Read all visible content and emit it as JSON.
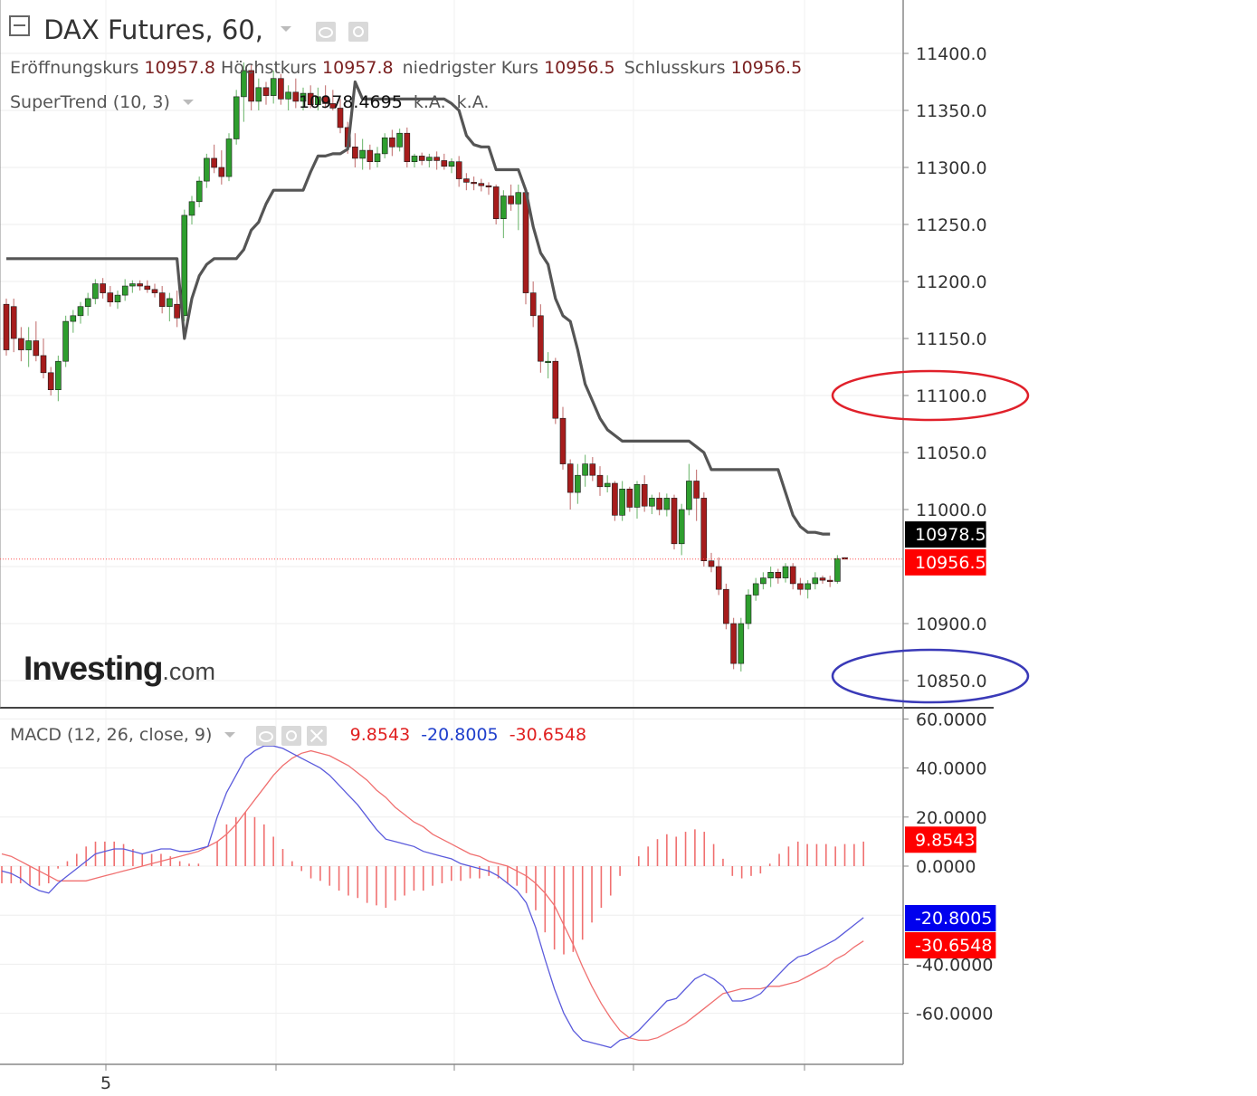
{
  "header": {
    "collapse_icon": "minus-box-icon",
    "title": "DAX Futures, 60,",
    "dropdown_icon": "chevron-down-icon",
    "eye_icon": "eye-icon",
    "settings_icon": "gear-icon"
  },
  "ohlc": {
    "open_label": "Eröffnungskurs",
    "open": "10957.8",
    "high_label": "Höchstkurs",
    "high": "10957.8",
    "low_label": "niedrigster Kurs",
    "low": "10956.5",
    "close_label": "Schlusskurs",
    "close": "10956.5"
  },
  "supertrend": {
    "label": "SuperTrend (10, 3)",
    "value": "10978.4695",
    "na1": "k.A.",
    "na2": "k.A."
  },
  "macd_legend": {
    "label": "MACD (12, 26, close, 9)",
    "hist": "9.8543",
    "macd": "-20.8005",
    "signal": "-30.6548",
    "close_icon": "close-icon"
  },
  "logo": {
    "main": "Investing",
    "suffix": ".com"
  },
  "colors": {
    "up": "#2e9e2e",
    "down": "#a61c1c",
    "supertrend": "#555555",
    "macd_line": "#5b5bdc",
    "signal_line": "#f07070",
    "histogram": "#f07070",
    "last_price": "#ff0000",
    "annot_red": "#e0202a",
    "annot_blue": "#3a3ab8"
  },
  "chart_data": [
    {
      "type": "candlestick",
      "title": "DAX Futures, 60,",
      "ylim": [
        10835,
        11445
      ],
      "y_ticks": [
        "11400.0",
        "11350.0",
        "11300.0",
        "11250.0",
        "11200.0",
        "11150.0",
        "11100.0",
        "11050.0",
        "11000.0",
        "10900.0",
        "10850.0"
      ],
      "x_tick_labels": [
        "5"
      ],
      "candles": [
        [
          11180,
          11185,
          11135,
          11140
        ],
        [
          11178,
          11185,
          11138,
          11150
        ],
        [
          11150,
          11160,
          11130,
          11140
        ],
        [
          11140,
          11160,
          11125,
          11148
        ],
        [
          11148,
          11165,
          11130,
          11135
        ],
        [
          11135,
          11150,
          11115,
          11120
        ],
        [
          11120,
          11125,
          11100,
          11105
        ],
        [
          11105,
          11135,
          11095,
          11130
        ],
        [
          11130,
          11170,
          11125,
          11165
        ],
        [
          11165,
          11175,
          11155,
          11170
        ],
        [
          11170,
          11182,
          11163,
          11178
        ],
        [
          11178,
          11190,
          11170,
          11185
        ],
        [
          11185,
          11202,
          11180,
          11198
        ],
        [
          11198,
          11203,
          11185,
          11190
        ],
        [
          11190,
          11196,
          11178,
          11182
        ],
        [
          11182,
          11192,
          11176,
          11188
        ],
        [
          11188,
          11202,
          11183,
          11196
        ],
        [
          11196,
          11201,
          11190,
          11198
        ],
        [
          11198,
          11201,
          11192,
          11196
        ],
        [
          11196,
          11201,
          11190,
          11193
        ],
        [
          11193,
          11198,
          11186,
          11190
        ],
        [
          11190,
          11196,
          11172,
          11178
        ],
        [
          11178,
          11190,
          11165,
          11185
        ],
        [
          11180,
          11192,
          11160,
          11168
        ],
        [
          11170,
          11263,
          11165,
          11258
        ],
        [
          11258,
          11275,
          11250,
          11270
        ],
        [
          11270,
          11292,
          11265,
          11288
        ],
        [
          11288,
          11312,
          11282,
          11308
        ],
        [
          11308,
          11320,
          11295,
          11300
        ],
        [
          11300,
          11315,
          11285,
          11292
        ],
        [
          11292,
          11330,
          11288,
          11325
        ],
        [
          11325,
          11368,
          11320,
          11362
        ],
        [
          11362,
          11392,
          11340,
          11385
        ],
        [
          11385,
          11390,
          11350,
          11358
        ],
        [
          11358,
          11378,
          11350,
          11370
        ],
        [
          11370,
          11375,
          11355,
          11363
        ],
        [
          11363,
          11385,
          11356,
          11378
        ],
        [
          11378,
          11382,
          11355,
          11360
        ],
        [
          11360,
          11372,
          11350,
          11366
        ],
        [
          11366,
          11378,
          11352,
          11358
        ],
        [
          11358,
          11370,
          11350,
          11365
        ],
        [
          11365,
          11372,
          11352,
          11355
        ],
        [
          11355,
          11370,
          11350,
          11362
        ],
        [
          11362,
          11372,
          11352,
          11356
        ],
        [
          11356,
          11368,
          11350,
          11352
        ],
        [
          11352,
          11360,
          11330,
          11335
        ],
        [
          11335,
          11340,
          11312,
          11318
        ],
        [
          11318,
          11330,
          11300,
          11308
        ],
        [
          11308,
          11325,
          11298,
          11315
        ],
        [
          11315,
          11320,
          11298,
          11305
        ],
        [
          11305,
          11318,
          11300,
          11312
        ],
        [
          11312,
          11330,
          11308,
          11326
        ],
        [
          11326,
          11333,
          11310,
          11318
        ],
        [
          11318,
          11334,
          11314,
          11330
        ],
        [
          11330,
          11335,
          11300,
          11305
        ],
        [
          11305,
          11312,
          11300,
          11310
        ],
        [
          11310,
          11313,
          11302,
          11306
        ],
        [
          11306,
          11312,
          11300,
          11309
        ],
        [
          11309,
          11314,
          11298,
          11306
        ],
        [
          11306,
          11312,
          11298,
          11301
        ],
        [
          11301,
          11308,
          11295,
          11305
        ],
        [
          11305,
          11310,
          11283,
          11290
        ],
        [
          11290,
          11295,
          11280,
          11287
        ],
        [
          11287,
          11292,
          11280,
          11286
        ],
        [
          11286,
          11290,
          11279,
          11284
        ],
        [
          11284,
          11287,
          11276,
          11283
        ],
        [
          11283,
          11285,
          11250,
          11255
        ],
        [
          11255,
          11280,
          11238,
          11275
        ],
        [
          11275,
          11285,
          11262,
          11268
        ],
        [
          11268,
          11285,
          11245,
          11278
        ],
        [
          11278,
          11282,
          11180,
          11190
        ],
        [
          11190,
          11200,
          11160,
          11170
        ],
        [
          11170,
          11180,
          11120,
          11130
        ],
        [
          11130,
          11138,
          11115,
          11130
        ],
        [
          11130,
          11133,
          11075,
          11080
        ],
        [
          11080,
          11090,
          11035,
          11040
        ],
        [
          11040,
          11044,
          11000,
          11015
        ],
        [
          11015,
          11040,
          11005,
          11030
        ],
        [
          11030,
          11048,
          11020,
          11040
        ],
        [
          11040,
          11046,
          11025,
          11030
        ],
        [
          11030,
          11038,
          11012,
          11020
        ],
        [
          11020,
          11030,
          11015,
          11023
        ],
        [
          11023,
          11025,
          10990,
          10995
        ],
        [
          10995,
          11025,
          10990,
          11018
        ],
        [
          11018,
          11020,
          10998,
          11002
        ],
        [
          11002,
          11025,
          10992,
          11022
        ],
        [
          11022,
          11030,
          10998,
          11003
        ],
        [
          11003,
          11013,
          10996,
          11010
        ],
        [
          11010,
          11015,
          10995,
          11000
        ],
        [
          11000,
          11014,
          10994,
          11010
        ],
        [
          11010,
          11013,
          10965,
          10970
        ],
        [
          10970,
          11005,
          10960,
          11000
        ],
        [
          11000,
          11040,
          10995,
          11025
        ],
        [
          11025,
          11035,
          10990,
          11010
        ],
        [
          11010,
          11015,
          10950,
          10955
        ],
        [
          10955,
          10962,
          10945,
          10950
        ],
        [
          10950,
          10958,
          10925,
          10930
        ],
        [
          10930,
          10935,
          10895,
          10900
        ],
        [
          10900,
          10905,
          10860,
          10865
        ],
        [
          10865,
          10905,
          10858,
          10900
        ],
        [
          10900,
          10930,
          10895,
          10925
        ],
        [
          10925,
          10940,
          10920,
          10935
        ],
        [
          10935,
          10945,
          10930,
          10940
        ],
        [
          10940,
          10950,
          10932,
          10945
        ],
        [
          10945,
          10948,
          10935,
          10940
        ],
        [
          10940,
          10953,
          10936,
          10950
        ],
        [
          10950,
          10953,
          10930,
          10935
        ],
        [
          10935,
          10940,
          10925,
          10930
        ],
        [
          10930,
          10938,
          10922,
          10935
        ],
        [
          10935,
          10945,
          10930,
          10940
        ],
        [
          10940,
          10942,
          10935,
          10938
        ],
        [
          10938,
          10942,
          10932,
          10937
        ],
        [
          10937,
          10960,
          10935,
          10957
        ],
        [
          10957.8,
          10957.8,
          10956.5,
          10956.5
        ]
      ],
      "supertrend": [
        11220,
        11220,
        11220,
        11220,
        11220,
        11220,
        11220,
        11220,
        11220,
        11220,
        11220,
        11220,
        11220,
        11220,
        11220,
        11220,
        11220,
        11220,
        11220,
        11220,
        11220,
        11220,
        11220,
        11220,
        11150,
        11185,
        11205,
        11215,
        11220,
        11220,
        11220,
        11220,
        11228,
        11245,
        11252,
        11268,
        11280,
        11280,
        11280,
        11280,
        11280,
        11296,
        11310,
        11310,
        11312,
        11312,
        11316,
        11375,
        11360,
        11360,
        11360,
        11360,
        11360,
        11360,
        11360,
        11360,
        11360,
        11360,
        11360,
        11360,
        11356,
        11350,
        11328,
        11320,
        11318,
        11318,
        11298,
        11298,
        11298,
        11298,
        11280,
        11248,
        11225,
        11215,
        11185,
        11170,
        11165,
        11140,
        11110,
        11095,
        11080,
        11070,
        11065,
        11060,
        11060,
        11060,
        11060,
        11060,
        11060,
        11060,
        11060,
        11060,
        11060,
        11055,
        11050,
        11035,
        11035,
        11035,
        11035,
        11035,
        11035,
        11035,
        11035,
        11035,
        11035,
        11015,
        10995,
        10985,
        10980,
        10980,
        10978.5,
        10978.5
      ],
      "last_values": {
        "supertrend": "10978.5",
        "price": "10956.5"
      },
      "annotations": [
        "red ellipse around 11100.0",
        "blue ellipse around 10850.0"
      ]
    },
    {
      "type": "line",
      "title": "MACD (12, 26, close, 9)",
      "ylim": [
        -74,
        64
      ],
      "y_ticks": [
        "60.0000",
        "40.0000",
        "20.0000",
        "0.0000",
        "-40.0000",
        "-60.0000"
      ],
      "series": [
        {
          "name": "MACD",
          "values": [
            -2,
            -3,
            -5,
            -8,
            -10,
            -11,
            -7,
            -4,
            -1,
            2,
            5,
            6,
            7,
            7,
            6,
            5,
            6,
            7,
            7,
            6,
            6,
            7,
            8,
            20,
            30,
            37,
            44,
            47,
            49,
            49,
            48,
            46,
            44,
            42,
            40,
            37,
            33,
            29,
            25,
            20,
            15,
            11,
            10,
            9,
            8,
            6,
            5,
            4,
            3,
            1,
            0,
            -1,
            -2,
            -4,
            -7,
            -10,
            -15,
            -25,
            -38,
            -50,
            -60,
            -67,
            -71,
            -72,
            -73,
            -74,
            -71,
            -70,
            -67,
            -63,
            -59,
            -55,
            -54,
            -50,
            -46,
            -44,
            -46,
            -49,
            -55,
            -55,
            -54,
            -52,
            -48,
            -44,
            -40,
            -37,
            -36,
            -34,
            -32,
            -30,
            -27,
            -24,
            -21
          ]
        },
        {
          "name": "Signal",
          "values": [
            5,
            4,
            2,
            0,
            -2,
            -4,
            -6,
            -6,
            -6,
            -6,
            -5,
            -4,
            -3,
            -2,
            -1,
            0,
            1,
            2,
            3,
            4,
            5,
            6,
            8,
            10,
            13,
            17,
            22,
            27,
            32,
            37,
            41,
            44,
            46,
            47,
            46,
            45,
            43,
            41,
            38,
            35,
            31,
            28,
            24,
            21,
            18,
            16,
            13,
            11,
            9,
            7,
            5,
            4,
            2,
            1,
            0,
            -2,
            -4,
            -7,
            -11,
            -16,
            -24,
            -32,
            -41,
            -49,
            -56,
            -62,
            -67,
            -70,
            -71,
            -71,
            -70,
            -68,
            -66,
            -64,
            -61,
            -58,
            -55,
            -52,
            -51,
            -50,
            -50,
            -50,
            -49,
            -49,
            -48,
            -47,
            -45,
            -43,
            -41,
            -38,
            -36,
            -33,
            -30.5
          ]
        },
        {
          "name": "Histogram",
          "values": [
            -7,
            -7,
            -7,
            -8,
            -8,
            -7,
            -1,
            2,
            5,
            8,
            10,
            10,
            10,
            9,
            7,
            5,
            5,
            5,
            4,
            2,
            1,
            1,
            0,
            10,
            17,
            20,
            22,
            20,
            17,
            12,
            7,
            2,
            -2,
            -5,
            -6,
            -8,
            -10,
            -12,
            -13,
            -15,
            -16,
            -17,
            -14,
            -12,
            -10,
            -10,
            -8,
            -7,
            -6,
            -6,
            -5,
            -5,
            -4,
            -5,
            -7,
            -8,
            -11,
            -18,
            -27,
            -34,
            -36,
            -35,
            -30,
            -23,
            -17,
            -12,
            -4,
            0,
            4,
            8,
            11,
            13,
            12,
            14,
            15,
            14,
            9,
            3,
            -4,
            -5,
            -4,
            -3,
            1,
            5,
            8,
            10,
            9,
            9,
            9,
            8,
            9,
            9,
            10
          ]
        }
      ],
      "last_values": {
        "histogram": "9.8543",
        "macd": "-20.8005",
        "signal": "-30.6548"
      }
    }
  ]
}
